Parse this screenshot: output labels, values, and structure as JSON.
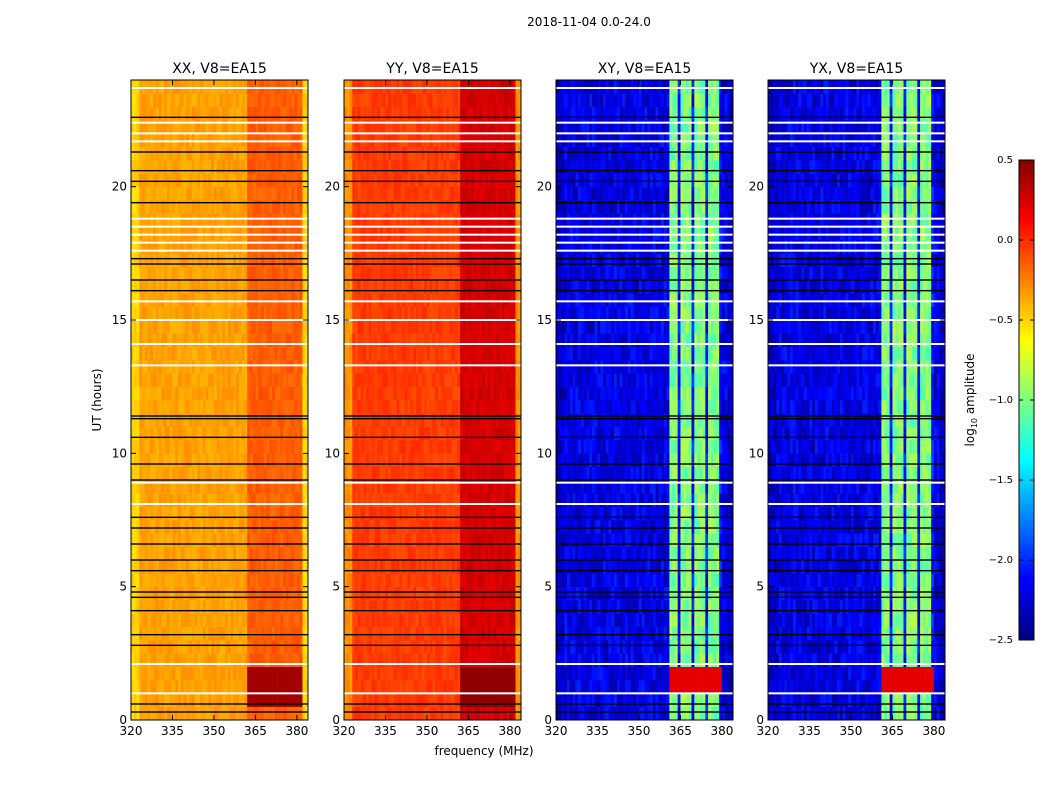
{
  "chart_data": {
    "type": "heatmap",
    "suptitle": "2018-11-04 0.0-24.0",
    "xlabel": "frequency (MHz)",
    "ylabel": "UT (hours)",
    "xlim": [
      320,
      384
    ],
    "ylim": [
      0,
      24
    ],
    "xticks": [
      "320",
      "335",
      "350",
      "365",
      "380"
    ],
    "xtick_values": [
      320,
      335,
      350,
      365,
      380
    ],
    "yticks": [
      "0",
      "5",
      "10",
      "15",
      "20"
    ],
    "ytick_values": [
      0,
      5,
      10,
      15,
      20
    ],
    "panels": [
      {
        "title": "XX, V8=EA15",
        "base_level": -0.35,
        "edge_level": -0.5,
        "rfi_band": [
          362,
          382
        ],
        "rfi_level": -0.15,
        "burst_hours": [
          0.9,
          1.9
        ],
        "burst_level": 0.4
      },
      {
        "title": "YY, V8=EA15",
        "base_level": -0.05,
        "edge_level": -0.3,
        "rfi_band": [
          362,
          382
        ],
        "rfi_level": 0.25,
        "burst_hours": [
          0.9,
          1.9
        ],
        "burst_level": 0.45
      },
      {
        "title": "XY, V8=EA15",
        "base_level": -2.2,
        "edge_level": -2.3,
        "rfi_band": [
          361,
          380
        ],
        "rfi_level": -1.0,
        "burst_hours": [
          1.2,
          1.9
        ],
        "burst_level": 0.2
      },
      {
        "title": "YX, V8=EA15",
        "base_level": -2.2,
        "edge_level": -2.3,
        "rfi_band": [
          361,
          380
        ],
        "rfi_level": -1.0,
        "burst_hours": [
          1.2,
          1.9
        ],
        "burst_level": 0.2
      }
    ],
    "flagged_white_hours": [
      23.7,
      22.4,
      22.0,
      21.7,
      18.8,
      18.5,
      18.2,
      17.9,
      17.6,
      15.7,
      15.0,
      14.1,
      13.3,
      8.9,
      8.1,
      2.1,
      1.0
    ],
    "flagged_black_hours": [
      22.6,
      21.3,
      20.6,
      20.2,
      19.4,
      17.3,
      17.1,
      16.5,
      16.1,
      11.4,
      11.3,
      10.6,
      9.6,
      9.0,
      7.6,
      7.2,
      6.6,
      6.0,
      5.6,
      4.8,
      4.6,
      4.1,
      3.2,
      2.8,
      0.6,
      0.3
    ],
    "colorbar": {
      "label": "log10 amplitude",
      "label_base": "log",
      "label_sub": "10",
      "label_rest": " amplitude",
      "colormap": "jet",
      "range": [
        -2.5,
        0.5
      ],
      "ticks": [
        "0.5",
        "0.0",
        "−0.5",
        "−1.0",
        "−1.5",
        "−2.0",
        "−2.5"
      ],
      "tick_values": [
        0.5,
        0.0,
        -0.5,
        -1.0,
        -1.5,
        -2.0,
        -2.5
      ]
    }
  }
}
